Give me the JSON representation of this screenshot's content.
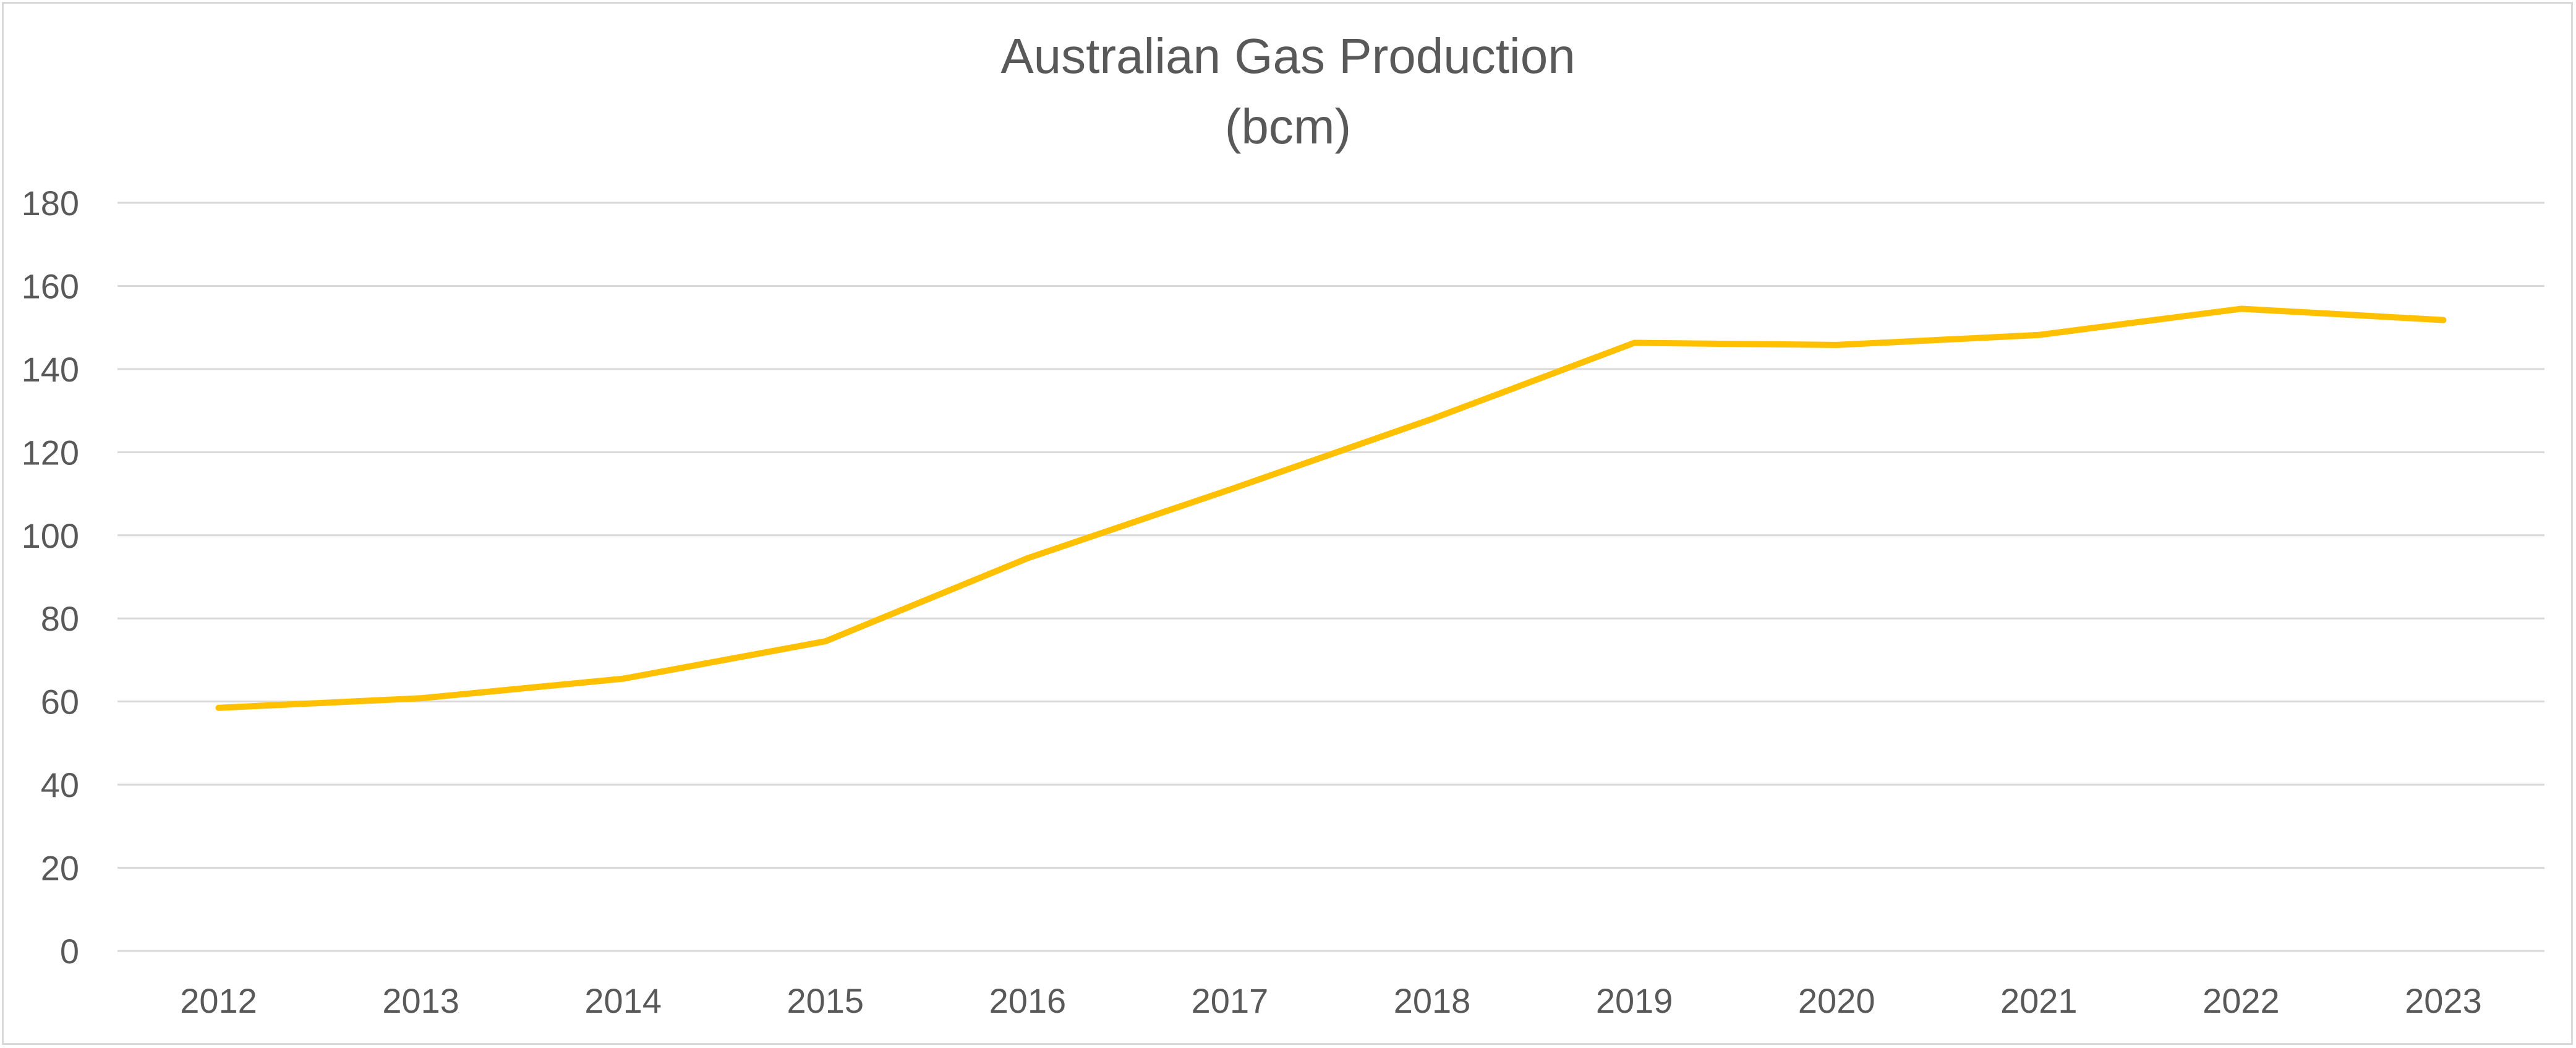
{
  "chart_data": {
    "type": "line",
    "title": "Australian Gas Production",
    "subtitle": "(bcm)",
    "xlabel": "",
    "ylabel": "",
    "categories": [
      "2012",
      "2013",
      "2014",
      "2015",
      "2016",
      "2017",
      "2018",
      "2019",
      "2020",
      "2021",
      "2022",
      "2023"
    ],
    "series": [
      {
        "values": [
          58.5,
          60.8,
          65.5,
          74.5,
          94.5,
          111,
          128,
          146.3,
          145.8,
          148.2,
          154.5,
          151.8
        ],
        "color": "#FFC000"
      }
    ],
    "ylim": [
      0,
      180
    ],
    "yticks": [
      "0",
      "20",
      "40",
      "60",
      "80",
      "100",
      "120",
      "140",
      "160",
      "180"
    ],
    "grid": "horizontal",
    "legend": "none"
  }
}
